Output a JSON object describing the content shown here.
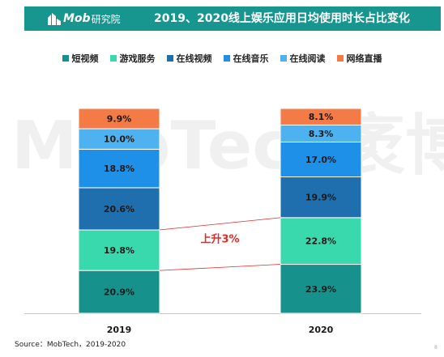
{
  "header": {
    "logo_text": "Mob",
    "logo_sub": "研究院",
    "title": "2019、2020线上娱乐应用日均使用时长占比变化"
  },
  "watermark_text": "MobTech袤博",
  "chart_data": {
    "type": "bar",
    "stacked": true,
    "categories": [
      "2019",
      "2020"
    ],
    "series": [
      {
        "name": "短视频",
        "color": "#16918c",
        "values": [
          20.9,
          23.9
        ],
        "labels": [
          "20.9%",
          "23.9%"
        ]
      },
      {
        "name": "游戏服务",
        "color": "#3ad8ad",
        "values": [
          19.8,
          22.8
        ],
        "labels": [
          "19.8%",
          "22.8%"
        ]
      },
      {
        "name": "在线视频",
        "color": "#1f6fae",
        "values": [
          20.6,
          19.9
        ],
        "labels": [
          "20.6%",
          "19.9%"
        ]
      },
      {
        "name": "在线音乐",
        "color": "#1e90e8",
        "values": [
          18.8,
          17.0
        ],
        "labels": [
          "18.8%",
          "17.0%"
        ]
      },
      {
        "name": "在线阅读",
        "color": "#4fb2f0",
        "values": [
          10.0,
          8.3
        ],
        "labels": [
          "10.0%",
          "8.3%"
        ]
      },
      {
        "name": "网络直播",
        "color": "#f47b45",
        "values": [
          9.9,
          8.1
        ],
        "labels": [
          "9.9%",
          "8.1%"
        ]
      }
    ],
    "annotation": {
      "text": "上升3%",
      "color": "#e02a2a"
    },
    "connector_series_index": 1,
    "grid": false,
    "legend_position": "top"
  },
  "source": "Source：MobTech，2019-2020",
  "page_number": "8"
}
